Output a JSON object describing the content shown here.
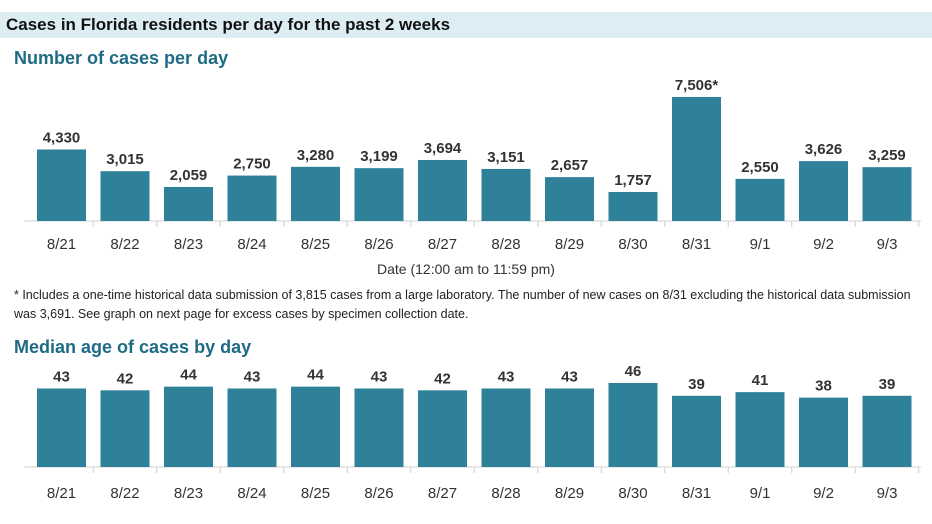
{
  "header": {
    "title": "Cases in Florida residents per day for the past 2 weeks"
  },
  "colors": {
    "bar": "#2e8199",
    "title": "#1f6b86",
    "header_band": "#dceef4"
  },
  "chart_data": [
    {
      "type": "bar",
      "title": "Number of cases per day",
      "xlabel": "Date (12:00 am to 11:59 pm)",
      "ylabel": "",
      "ylim": [
        0,
        7506
      ],
      "categories": [
        "8/21",
        "8/22",
        "8/23",
        "8/24",
        "8/25",
        "8/26",
        "8/27",
        "8/28",
        "8/29",
        "8/30",
        "8/31",
        "9/1",
        "9/2",
        "9/3"
      ],
      "values": [
        4330,
        3015,
        2059,
        2750,
        3280,
        3199,
        3694,
        3151,
        2657,
        1757,
        7506,
        2550,
        3626,
        3259
      ],
      "data_labels": [
        "4,330",
        "3,015",
        "2,059",
        "2,750",
        "3,280",
        "3,199",
        "3,694",
        "3,151",
        "2,657",
        "1,757",
        "7,506*",
        "2,550",
        "3,626",
        "3,259"
      ]
    },
    {
      "type": "bar",
      "title": "Median age of cases by day",
      "xlabel": "",
      "ylabel": "",
      "ylim": [
        0,
        46
      ],
      "categories": [
        "8/21",
        "8/22",
        "8/23",
        "8/24",
        "8/25",
        "8/26",
        "8/27",
        "8/28",
        "8/29",
        "8/30",
        "8/31",
        "9/1",
        "9/2",
        "9/3"
      ],
      "values": [
        43,
        42,
        44,
        43,
        44,
        43,
        42,
        43,
        43,
        46,
        39,
        41,
        38,
        39
      ],
      "data_labels": [
        "43",
        "42",
        "44",
        "43",
        "44",
        "43",
        "42",
        "43",
        "43",
        "46",
        "39",
        "41",
        "38",
        "39"
      ]
    }
  ],
  "footnote": "* Includes a one-time historical data submission of 3,815 cases from a large laboratory. The number of new cases on 8/31 excluding the historical data submission was 3,691. See graph on next page for excess cases by specimen collection date."
}
